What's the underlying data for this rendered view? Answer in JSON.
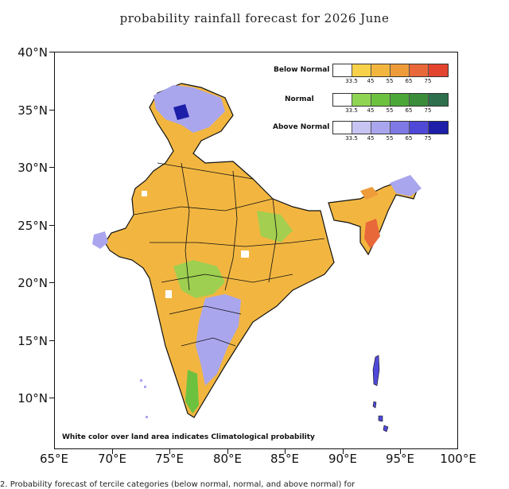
{
  "title": "probability rainfall forecast for 2026 June",
  "y_ticks": [
    "40°N",
    "35°N",
    "30°N",
    "25°N",
    "20°N",
    "15°N",
    "10°N"
  ],
  "x_ticks": [
    "65°E",
    "70°E",
    "75°E",
    "80°E",
    "85°E",
    "90°E",
    "95°E",
    "100°E"
  ],
  "legend": [
    {
      "label": "Below Normal",
      "colors": [
        "#ffffff",
        "#f7d14a",
        "#f2b640",
        "#ee9b3a",
        "#e8683a",
        "#e2442f"
      ],
      "ticks": [
        "33.5",
        "45",
        "55",
        "65",
        "75"
      ]
    },
    {
      "label": "Normal",
      "colors": [
        "#ffffff",
        "#8fd453",
        "#6cc23f",
        "#4ba838",
        "#3a8c3a",
        "#2e6f4d"
      ],
      "ticks": [
        "33.5",
        "45",
        "55",
        "65",
        "75"
      ]
    },
    {
      "label": "Above Normal",
      "colors": [
        "#ffffff",
        "#c7c4f3",
        "#a9a6ee",
        "#7f79e6",
        "#4f49d8",
        "#1d1fa8"
      ],
      "ticks": [
        "33.5",
        "45",
        "55",
        "65",
        "75"
      ]
    }
  ],
  "note": "White color over land area indicates Climatological probability",
  "caption": "2. Probability forecast of tercile categories (below normal, normal, and above normal) for"
}
